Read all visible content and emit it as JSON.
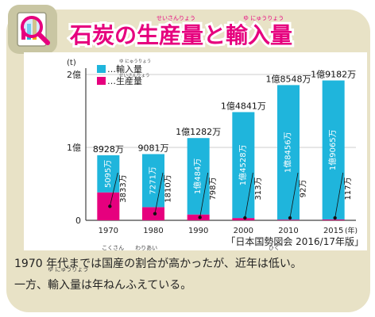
{
  "title": {
    "text": "石炭の生産量と輸入量",
    "furigana_seisanryou": "せいさんりょう",
    "furigana_yunyuuryou": "ゆ にゅうりょう"
  },
  "source": "「日本国勢図会 2016/17年版」",
  "caption": {
    "line1_a": "1970 年代までは",
    "line1_kokusan": "国産",
    "line1_kokusan_furi": "こくさん",
    "line1_b": "の",
    "line1_wariai": "割合",
    "line1_wariai_furi": "わりあい",
    "line1_c": "が高かったが、近年は",
    "line1_hikui": "低",
    "line1_hikui_furi": "ひく",
    "line1_d": "い。",
    "line2_a": "一方、",
    "line2_yunyuuryou": "輸入量",
    "line2_yunyuuryou_furi": "ゆ にゅうりょう",
    "line2_b": "は年ねんふえている。"
  },
  "colors": {
    "frame": "#e8e2c6",
    "title_pink": "#e6007e",
    "import_blue": "#1fb5dc",
    "production_pink": "#e6007e"
  },
  "chart_data": {
    "type": "bar",
    "stacked": true,
    "unit": "(t)",
    "xunit": "(年)",
    "categories": [
      "1970",
      "1980",
      "1990",
      "2000",
      "2010",
      "2015"
    ],
    "y_ticks": [
      "0",
      "1億",
      "2億"
    ],
    "ylim": [
      0,
      200000000
    ],
    "grid": true,
    "legend": {
      "placement": "top-left",
      "items": [
        {
          "label": "…輸入量",
          "furigana": "ゆ にゅうりょう"
        },
        {
          "label": "…生産量",
          "furigana": "せいさんりょう"
        }
      ]
    },
    "series": [
      {
        "name": "生産量",
        "values": [
          38330000,
          18100000,
          7980000,
          3130000,
          920000,
          1170000
        ],
        "labels": [
          "3833万",
          "1810万",
          "798万",
          "313万",
          "92万",
          "117万"
        ]
      },
      {
        "name": "輸入量",
        "values": [
          50950000,
          72710000,
          104840000,
          145280000,
          184560000,
          190650000
        ],
        "labels": [
          "5095万",
          "7271万",
          "1億484万",
          "1億4528万",
          "1億8456万",
          "1億9065万"
        ]
      }
    ],
    "total_labels": [
      "8928万",
      "9081万",
      "1億1282万",
      "1億4841万",
      "1億8548万",
      "1億9182万"
    ]
  }
}
